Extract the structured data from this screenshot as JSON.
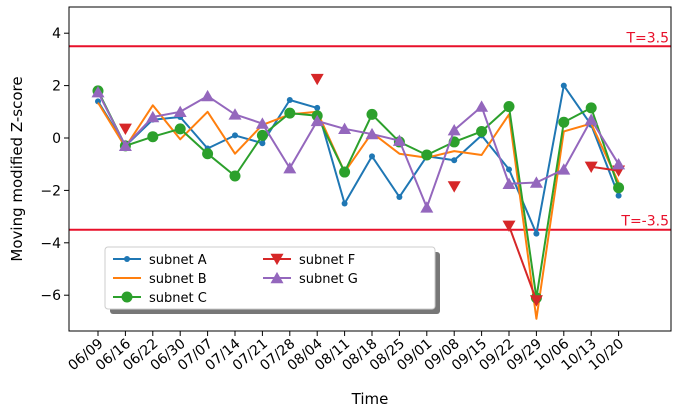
{
  "chart_data": {
    "type": "line",
    "xlabel": "Time",
    "ylabel": "Moving modified Z-score",
    "x": [
      "06/09",
      "06/16",
      "06/22",
      "06/30",
      "07/07",
      "07/14",
      "07/21",
      "07/28",
      "08/04",
      "08/11",
      "08/18",
      "08/25",
      "09/01",
      "09/08",
      "09/15",
      "09/22",
      "09/29",
      "10/06",
      "10/13",
      "10/20"
    ],
    "ylim": [
      -7.5,
      5.0
    ],
    "yticks": [
      -6,
      -4,
      -2,
      0,
      2,
      4
    ],
    "yticks_labels": [
      "−6",
      "−4",
      "−2",
      "0",
      "2",
      "4"
    ],
    "grid": false,
    "legend_position": "lower-left",
    "thresholds": [
      {
        "value": 3.5,
        "label": "T=3.5",
        "color": "#e8102a"
      },
      {
        "value": -3.5,
        "label": "T=-3.5",
        "color": "#e8102a"
      }
    ],
    "series": [
      {
        "name": "subnet A",
        "color": "#1f77b4",
        "marker": "dot",
        "values": [
          1.4,
          -0.3,
          0.7,
          0.8,
          -0.4,
          0.1,
          -0.2,
          1.45,
          1.15,
          -2.5,
          -0.7,
          -2.25,
          -0.7,
          -0.85,
          0.1,
          -1.2,
          -3.65,
          2.0,
          0.5,
          -2.2
        ]
      },
      {
        "name": "subnet B",
        "color": "#ff7f0e",
        "marker": "none",
        "values": [
          1.35,
          -0.35,
          1.25,
          -0.05,
          1.0,
          -0.6,
          0.5,
          0.9,
          1.0,
          -1.3,
          0.2,
          -0.6,
          -0.75,
          -0.5,
          -0.65,
          0.9,
          -6.9,
          0.25,
          0.55,
          -1.7
        ]
      },
      {
        "name": "subnet C",
        "color": "#2ca02c",
        "marker": "circle",
        "values": [
          1.8,
          -0.3,
          0.05,
          0.35,
          -0.6,
          -1.45,
          0.1,
          0.95,
          0.85,
          -1.3,
          0.9,
          -0.15,
          -0.65,
          -0.15,
          0.25,
          1.2,
          -6.1,
          0.6,
          1.15,
          -1.9
        ]
      },
      {
        "name": "subnet F",
        "color": "#d62728",
        "marker": "triangle-down",
        "values": [
          null,
          0.35,
          null,
          null,
          null,
          null,
          null,
          null,
          2.25,
          null,
          null,
          null,
          null,
          -1.85,
          null,
          -3.35,
          -6.2,
          null,
          -1.1,
          -1.25
        ]
      },
      {
        "name": "subnet G",
        "color": "#9467bd",
        "marker": "triangle-up",
        "values": [
          1.75,
          -0.3,
          0.8,
          1.0,
          1.6,
          0.9,
          0.55,
          -1.15,
          0.65,
          0.35,
          0.15,
          -0.1,
          -2.65,
          0.3,
          1.2,
          -1.75,
          -1.7,
          -1.2,
          0.7,
          -1.0
        ]
      }
    ]
  }
}
